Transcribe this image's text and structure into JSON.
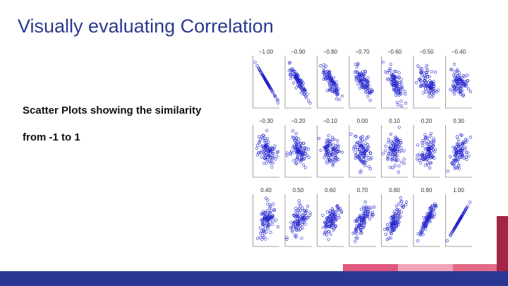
{
  "slide": {
    "title": "Visually evaluating Correlation",
    "bullets": [
      "Scatter Plots showing the similarity",
      "from -1 to 1"
    ]
  },
  "colors": {
    "title": "#2b3a8c",
    "points": "#2222cc",
    "footer": "#2a3894",
    "accent_pink": "#e0577f",
    "accent_light_pink": "#f2a4ba",
    "accent_red": "#e26a86",
    "accent_dark": "#a42545"
  },
  "chart_data": {
    "type": "scatter",
    "title": "",
    "panels": [
      {
        "label": "−1.00",
        "r": -1.0
      },
      {
        "label": "−0.90",
        "r": -0.9
      },
      {
        "label": "−0.80",
        "r": -0.8
      },
      {
        "label": "−0.70",
        "r": -0.7
      },
      {
        "label": "−0.60",
        "r": -0.6
      },
      {
        "label": "−0.50",
        "r": -0.5
      },
      {
        "label": "−0.40",
        "r": -0.4
      },
      {
        "label": "−0.30",
        "r": -0.3
      },
      {
        "label": "−0.20",
        "r": -0.2
      },
      {
        "label": "−0.10",
        "r": -0.1
      },
      {
        "label": "0.00",
        "r": 0.0
      },
      {
        "label": "0.10",
        "r": 0.1
      },
      {
        "label": "0.20",
        "r": 0.2
      },
      {
        "label": "0.30",
        "r": 0.3
      },
      {
        "label": "0.40",
        "r": 0.4
      },
      {
        "label": "0.50",
        "r": 0.5
      },
      {
        "label": "0.60",
        "r": 0.6
      },
      {
        "label": "0.70",
        "r": 0.7
      },
      {
        "label": "0.80",
        "r": 0.8
      },
      {
        "label": "0.90",
        "r": 0.9
      },
      {
        "label": "1.00",
        "r": 1.0
      }
    ]
  }
}
